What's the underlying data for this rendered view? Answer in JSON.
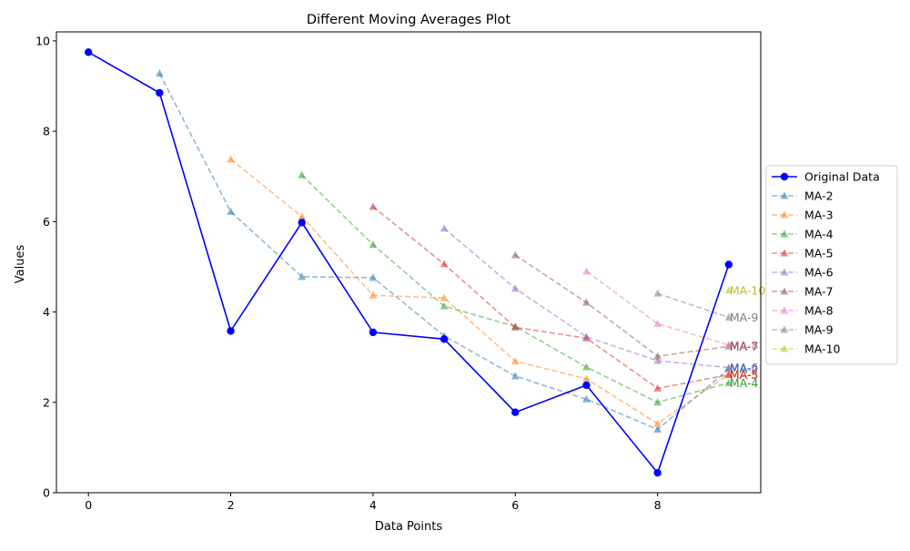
{
  "chart_data": {
    "type": "line",
    "title": "Different Moving Averages Plot",
    "xlabel": "Data Points",
    "ylabel": "Values",
    "xlim": [
      -0.45,
      9.45
    ],
    "ylim": [
      0,
      10.2
    ],
    "xticks": [
      0,
      2,
      4,
      6,
      8
    ],
    "yticks": [
      0,
      2,
      4,
      6,
      8,
      10
    ],
    "legend_position": "right-outside",
    "grid": false,
    "series": [
      {
        "name": "Original Data",
        "color": "#0000ff",
        "style": "solid",
        "marker": "circle",
        "x": [
          0,
          1,
          2,
          3,
          4,
          5,
          6,
          7,
          8,
          9
        ],
        "values": [
          9.75,
          8.85,
          3.58,
          5.98,
          3.55,
          3.4,
          1.78,
          2.38,
          0.44,
          5.05
        ]
      },
      {
        "name": "MA-2",
        "color": "#1f77b4",
        "style": "dashed",
        "marker": "triangle",
        "x": [
          1,
          2,
          3,
          4,
          5,
          6,
          7,
          8,
          9
        ],
        "values": [
          9.28,
          6.22,
          4.78,
          4.76,
          3.47,
          2.58,
          2.07,
          1.4,
          2.74
        ]
      },
      {
        "name": "MA-3",
        "color": "#ff7f0e",
        "style": "dashed",
        "marker": "triangle",
        "x": [
          2,
          3,
          4,
          5,
          6,
          7,
          8,
          9
        ],
        "values": [
          7.38,
          6.11,
          4.37,
          4.31,
          2.91,
          2.52,
          1.53,
          2.62
        ]
      },
      {
        "name": "MA-4",
        "color": "#2ca02c",
        "style": "dashed",
        "marker": "triangle",
        "x": [
          3,
          4,
          5,
          6,
          7,
          8,
          9
        ],
        "values": [
          7.03,
          5.49,
          4.13,
          3.68,
          2.78,
          2.0,
          2.43
        ]
      },
      {
        "name": "MA-5",
        "color": "#d62728",
        "style": "dashed",
        "marker": "triangle",
        "x": [
          4,
          5,
          6,
          7,
          8,
          9
        ],
        "values": [
          6.33,
          5.06,
          3.66,
          3.42,
          2.31,
          2.61
        ]
      },
      {
        "name": "MA-6",
        "color": "#9467bd",
        "style": "dashed",
        "marker": "triangle",
        "x": [
          5,
          6,
          7,
          8,
          9
        ],
        "values": [
          5.85,
          4.52,
          3.45,
          2.92,
          2.77
        ]
      },
      {
        "name": "MA-7",
        "color": "#8c564b",
        "style": "dashed",
        "marker": "triangle",
        "x": [
          6,
          7,
          8,
          9
        ],
        "values": [
          5.26,
          4.21,
          3.02,
          3.24
        ]
      },
      {
        "name": "MA-8",
        "color": "#e377c2",
        "style": "dashed",
        "marker": "triangle",
        "x": [
          7,
          8,
          9
        ],
        "values": [
          4.9,
          3.74,
          3.27
        ]
      },
      {
        "name": "MA-9",
        "color": "#7f7f7f",
        "style": "dashed",
        "marker": "triangle",
        "x": [
          8,
          9
        ],
        "values": [
          4.41,
          3.88
        ]
      },
      {
        "name": "MA-10",
        "color": "#bcbd22",
        "style": "dashed",
        "marker": "triangle",
        "x": [
          9
        ],
        "values": [
          4.48
        ]
      }
    ],
    "end_labels": [
      {
        "text": "MA-10",
        "color": "#bcbd22",
        "x": 9,
        "value": 4.48
      },
      {
        "text": "MA-9",
        "color": "#7f7f7f",
        "x": 9,
        "value": 3.88
      },
      {
        "text": "MA-8",
        "color": "#e377c2",
        "x": 9,
        "value": 3.27
      },
      {
        "text": "MA-7",
        "color": "#8c564b",
        "x": 9,
        "value": 3.24
      },
      {
        "text": "MA-6",
        "color": "#9467bd",
        "x": 9,
        "value": 2.77
      },
      {
        "text": "MA-2",
        "color": "#1f77b4",
        "x": 9,
        "value": 2.74
      },
      {
        "text": "MA-3",
        "color": "#ff7f0e",
        "x": 9,
        "value": 2.62
      },
      {
        "text": "MA-5",
        "color": "#d62728",
        "x": 9,
        "value": 2.61
      },
      {
        "text": "MA-4",
        "color": "#2ca02c",
        "x": 9,
        "value": 2.43
      }
    ]
  }
}
